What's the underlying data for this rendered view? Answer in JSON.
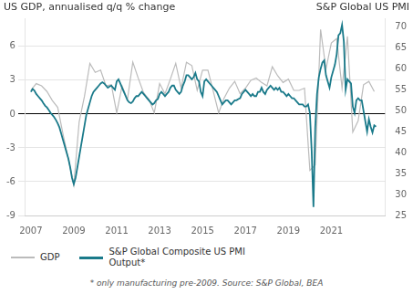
{
  "chart_data": {
    "type": "line",
    "ylabel": "US GDP, annualised q/q % change",
    "y2label": "S&P Global US PMI",
    "footnote": "* only manufacturing pre-2009. Source: S&P Global, BEA",
    "xlim": [
      2006.75,
      2023.5
    ],
    "xticks": [
      2007,
      2009,
      2011,
      2013,
      2015,
      2017,
      2019,
      2021
    ],
    "ylim": [
      -9,
      8.5
    ],
    "yticks": [
      -9,
      -6,
      -3,
      0,
      3,
      6
    ],
    "y2lim": [
      25,
      72.08
    ],
    "y2ticks": [
      25,
      30,
      35,
      40,
      45,
      50,
      55,
      60,
      65,
      70
    ],
    "grid": true,
    "legend": "bottom",
    "series": [
      {
        "name": "GDP",
        "color": "#bbbbbb",
        "axis": "y",
        "x": [
          2007.0,
          2007.25,
          2007.5,
          2007.75,
          2008.0,
          2008.25,
          2008.5,
          2008.75,
          2009.0,
          2009.25,
          2009.5,
          2009.75,
          2010.0,
          2010.25,
          2010.5,
          2010.75,
          2011.0,
          2011.25,
          2011.5,
          2011.75,
          2012.0,
          2012.25,
          2012.5,
          2012.75,
          2013.0,
          2013.25,
          2013.5,
          2013.75,
          2014.0,
          2014.25,
          2014.5,
          2014.75,
          2015.0,
          2015.25,
          2015.5,
          2015.75,
          2016.0,
          2016.25,
          2016.5,
          2016.75,
          2017.0,
          2017.25,
          2017.5,
          2017.75,
          2018.0,
          2018.25,
          2018.5,
          2018.75,
          2019.0,
          2019.25,
          2019.5,
          2019.75,
          2020.0,
          2020.25,
          2020.5,
          2020.75,
          2021.0,
          2021.25,
          2021.5,
          2021.75,
          2022.0,
          2022.25,
          2022.5,
          2022.75,
          2023.0
        ],
        "values": [
          2.1,
          2.7,
          2.5,
          2.0,
          1.2,
          0.6,
          -1.8,
          -4.0,
          -6.3,
          -0.7,
          1.6,
          4.5,
          3.7,
          3.9,
          2.5,
          2.6,
          0.1,
          2.5,
          1.3,
          4.6,
          3.2,
          1.9,
          1.3,
          0.1,
          2.7,
          1.8,
          3.1,
          4.5,
          2.3,
          4.6,
          4.3,
          2.1,
          3.9,
          3.9,
          2.0,
          0.1,
          1.4,
          2.3,
          2.9,
          1.8,
          2.3,
          3.0,
          3.2,
          2.8,
          2.5,
          4.2,
          3.4,
          2.8,
          3.1,
          2.1,
          2.1,
          2.3,
          -5.0,
          -4.5,
          7.5,
          4.0,
          6.3,
          6.7,
          2.3,
          6.9,
          -1.6,
          -0.6,
          2.6,
          2.9,
          2.0
        ]
      },
      {
        "name": "S&P Global Composite US PMI\nOutput*",
        "color": "#1a7a8a",
        "axis": "y2",
        "x": [
          2007.0,
          2007.083,
          2007.167,
          2007.25,
          2007.333,
          2007.417,
          2007.5,
          2007.583,
          2007.667,
          2007.75,
          2007.833,
          2007.917,
          2008.0,
          2008.083,
          2008.167,
          2008.25,
          2008.333,
          2008.417,
          2008.5,
          2008.583,
          2008.667,
          2008.75,
          2008.833,
          2008.917,
          2009.0,
          2009.083,
          2009.167,
          2009.25,
          2009.333,
          2009.417,
          2009.5,
          2009.583,
          2009.667,
          2009.75,
          2009.833,
          2009.917,
          2010.0,
          2010.083,
          2010.167,
          2010.25,
          2010.333,
          2010.417,
          2010.5,
          2010.583,
          2010.667,
          2010.75,
          2010.833,
          2010.917,
          2011.0,
          2011.083,
          2011.167,
          2011.25,
          2011.333,
          2011.417,
          2011.5,
          2011.583,
          2011.667,
          2011.75,
          2011.833,
          2011.917,
          2012.0,
          2012.083,
          2012.167,
          2012.25,
          2012.333,
          2012.417,
          2012.5,
          2012.583,
          2012.667,
          2012.75,
          2012.833,
          2012.917,
          2013.0,
          2013.083,
          2013.167,
          2013.25,
          2013.333,
          2013.417,
          2013.5,
          2013.583,
          2013.667,
          2013.75,
          2013.833,
          2013.917,
          2014.0,
          2014.083,
          2014.167,
          2014.25,
          2014.333,
          2014.417,
          2014.5,
          2014.583,
          2014.667,
          2014.75,
          2014.833,
          2014.917,
          2015.0,
          2015.083,
          2015.167,
          2015.25,
          2015.333,
          2015.417,
          2015.5,
          2015.583,
          2015.667,
          2015.75,
          2015.833,
          2015.917,
          2016.0,
          2016.083,
          2016.167,
          2016.25,
          2016.333,
          2016.417,
          2016.5,
          2016.583,
          2016.667,
          2016.75,
          2016.833,
          2016.917,
          2017.0,
          2017.083,
          2017.167,
          2017.25,
          2017.333,
          2017.417,
          2017.5,
          2017.583,
          2017.667,
          2017.75,
          2017.833,
          2017.917,
          2018.0,
          2018.083,
          2018.167,
          2018.25,
          2018.333,
          2018.417,
          2018.5,
          2018.583,
          2018.667,
          2018.75,
          2018.833,
          2018.917,
          2019.0,
          2019.083,
          2019.167,
          2019.25,
          2019.333,
          2019.417,
          2019.5,
          2019.583,
          2019.667,
          2019.75,
          2019.833,
          2019.917,
          2020.0,
          2020.083,
          2020.167,
          2020.25,
          2020.333,
          2020.417,
          2020.5,
          2020.583,
          2020.667,
          2020.75,
          2020.833,
          2020.917,
          2021.0,
          2021.083,
          2021.167,
          2021.25,
          2021.333,
          2021.417,
          2021.5,
          2021.583,
          2021.667,
          2021.75,
          2021.833,
          2021.917,
          2022.0,
          2022.083,
          2022.167,
          2022.25,
          2022.333,
          2022.417,
          2022.5,
          2022.583,
          2022.667,
          2022.75,
          2022.833,
          2022.917,
          2023.0,
          2023.083
        ],
        "values": [
          54.5,
          55.2,
          54.8,
          54.0,
          53.5,
          53.0,
          52.5,
          51.8,
          51.2,
          50.8,
          50.2,
          49.5,
          49.0,
          48.5,
          47.8,
          47.0,
          46.0,
          44.5,
          43.0,
          41.5,
          40.0,
          38.5,
          36.5,
          34.0,
          32.5,
          34.0,
          36.5,
          39.0,
          41.5,
          44.0,
          46.5,
          49.0,
          50.5,
          52.0,
          53.5,
          54.5,
          55.0,
          55.5,
          56.0,
          56.5,
          56.8,
          56.5,
          56.0,
          55.5,
          55.8,
          56.0,
          55.5,
          55.0,
          57.0,
          57.5,
          56.5,
          55.5,
          54.5,
          53.5,
          52.5,
          52.0,
          51.8,
          52.2,
          53.0,
          53.5,
          53.5,
          54.0,
          54.5,
          54.0,
          53.5,
          53.0,
          52.5,
          52.0,
          51.5,
          51.8,
          52.5,
          52.8,
          54.0,
          54.5,
          54.0,
          53.5,
          54.0,
          54.5,
          55.5,
          56.0,
          56.0,
          55.0,
          54.5,
          54.0,
          54.5,
          56.0,
          57.0,
          58.5,
          58.5,
          58.0,
          57.5,
          58.0,
          59.0,
          57.5,
          57.0,
          54.5,
          53.5,
          57.0,
          57.5,
          57.0,
          56.5,
          56.0,
          55.5,
          55.0,
          54.5,
          53.5,
          52.5,
          51.5,
          52.0,
          52.5,
          52.5,
          52.0,
          51.5,
          52.0,
          52.5,
          52.5,
          52.8,
          53.0,
          54.0,
          54.5,
          55.0,
          54.5,
          54.0,
          53.5,
          54.0,
          53.5,
          53.5,
          54.5,
          54.5,
          55.5,
          54.5,
          54.0,
          55.0,
          55.5,
          56.0,
          55.5,
          55.0,
          55.5,
          55.0,
          55.5,
          54.5,
          54.5,
          54.0,
          53.5,
          54.0,
          53.5,
          53.0,
          53.0,
          52.5,
          52.0,
          51.5,
          51.5,
          51.5,
          51.0,
          51.0,
          51.5,
          49.5,
          40.5,
          27.0,
          46.0,
          54.0,
          58.0,
          60.0,
          61.5,
          62.0,
          58.5,
          57.0,
          55.5,
          58.0,
          59.5,
          61.0,
          63.5,
          68.0,
          68.5,
          70.5,
          66.5,
          55.0,
          57.5,
          57.0,
          56.5,
          51.0,
          49.5,
          52.5,
          53.0,
          52.5,
          52.5,
          50.0,
          47.5,
          45.0,
          48.0,
          46.2,
          44.8,
          46.5,
          46.2
        ]
      }
    ]
  }
}
